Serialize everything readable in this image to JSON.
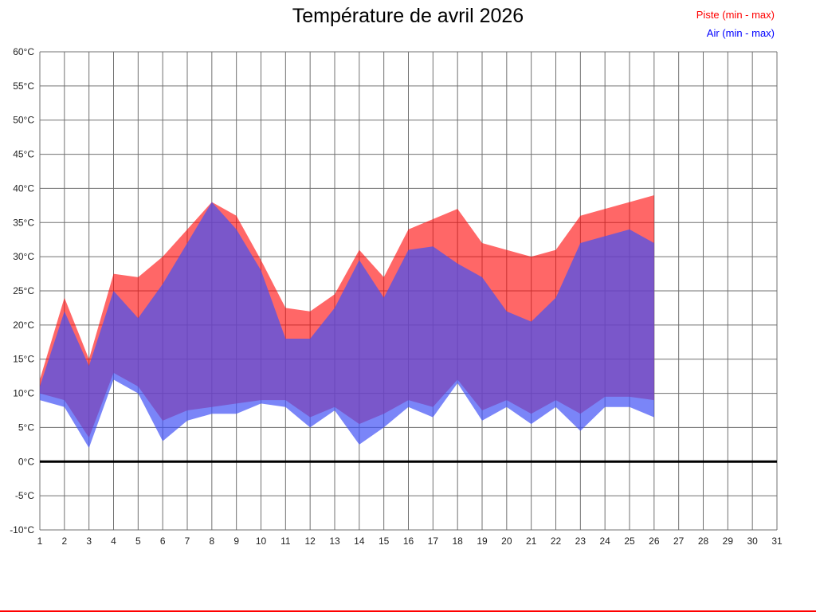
{
  "title": "Température de avril 2026",
  "legend": {
    "items": [
      {
        "label": "Piste (min - max)",
        "color": "#ff0000"
      },
      {
        "label": "Air (min - max)",
        "color": "#0000ff"
      }
    ]
  },
  "chart_data": {
    "type": "area",
    "title": "Température de avril 2026",
    "subtitle": "",
    "xlabel": "",
    "ylabel": "",
    "y_unit": "°C",
    "ylim": [
      -10,
      60
    ],
    "y_tick_step": 5,
    "x_ticks": [
      1,
      2,
      3,
      4,
      5,
      6,
      7,
      8,
      9,
      10,
      11,
      12,
      13,
      14,
      15,
      16,
      17,
      18,
      19,
      20,
      21,
      22,
      23,
      24,
      25,
      26,
      27,
      28,
      29,
      30,
      31
    ],
    "x": [
      1,
      2,
      3,
      4,
      5,
      6,
      7,
      8,
      9,
      10,
      11,
      12,
      13,
      14,
      15,
      16,
      17,
      18,
      19,
      20,
      21,
      22,
      23,
      24,
      25,
      26
    ],
    "series": [
      {
        "name": "Piste (min - max)",
        "fill": "rgba(255,10,10,0.62)",
        "max": [
          12,
          24,
          15,
          27.5,
          27,
          30,
          34,
          38,
          36,
          29.5,
          22.5,
          22,
          24.5,
          31,
          27,
          34,
          35.5,
          37,
          32,
          31,
          30,
          31,
          36,
          37,
          38,
          39
        ],
        "min": [
          10,
          9,
          3.5,
          13,
          11,
          6,
          7.5,
          8,
          8.5,
          9,
          9,
          6.5,
          8,
          5.5,
          7,
          9,
          8,
          12,
          7.5,
          9,
          7,
          9,
          7,
          9.5,
          9.5,
          9
        ]
      },
      {
        "name": "Air (min - max)",
        "fill": "rgba(65,81,245,0.70)",
        "max": [
          11,
          22,
          14,
          25,
          21,
          26,
          32,
          38,
          34,
          28,
          18,
          18,
          22.5,
          29.5,
          24,
          31,
          31.5,
          29,
          27,
          22,
          20.5,
          24,
          32,
          33,
          34,
          32
        ],
        "min": [
          9,
          8,
          2,
          12,
          10,
          3,
          6,
          7,
          7,
          8.5,
          8,
          5,
          7.5,
          2.5,
          5,
          8,
          6.5,
          11.5,
          6,
          8,
          5.5,
          8,
          4.5,
          8,
          8,
          6.5
        ]
      }
    ],
    "grid": true,
    "grid_color": "#707070",
    "zero_line": true,
    "zero_line_color": "#000000",
    "legend_position": "top-right"
  }
}
